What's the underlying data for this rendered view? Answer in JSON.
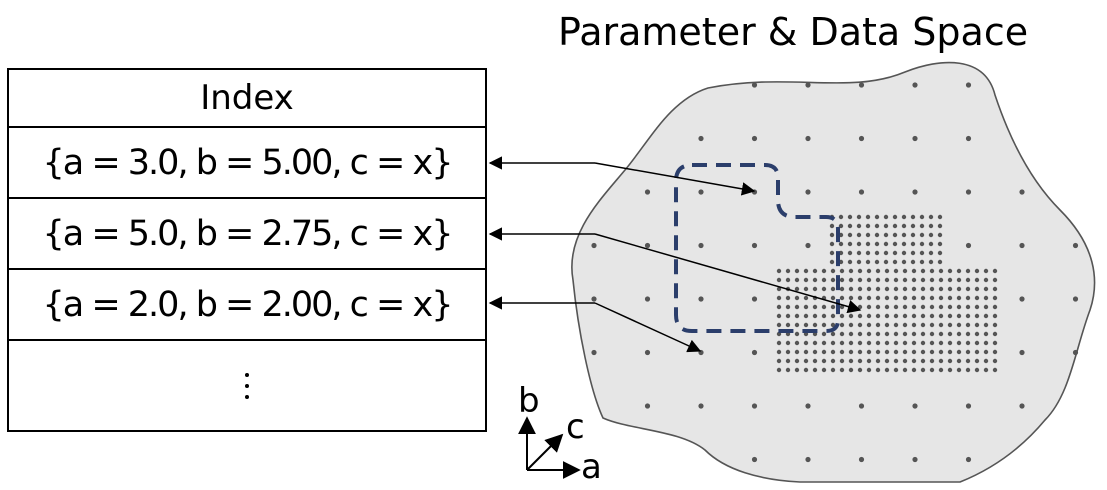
{
  "space": {
    "title": "Parameter & Data Space"
  },
  "index": {
    "header": "Index",
    "rows": [
      "{a = 3.0, b = 5.00, c = x}",
      "{a = 5.0, b = 2.75, c = x}",
      "{a = 2.0, b = 2.00, c = x}"
    ]
  },
  "axes": {
    "a": "a",
    "b": "b",
    "c": "c"
  },
  "colors": {
    "region_fill": "#e6e6e6",
    "region_stroke": "#555555",
    "grid_dot": "#555555",
    "dashed_region": "#2b3e6b"
  }
}
